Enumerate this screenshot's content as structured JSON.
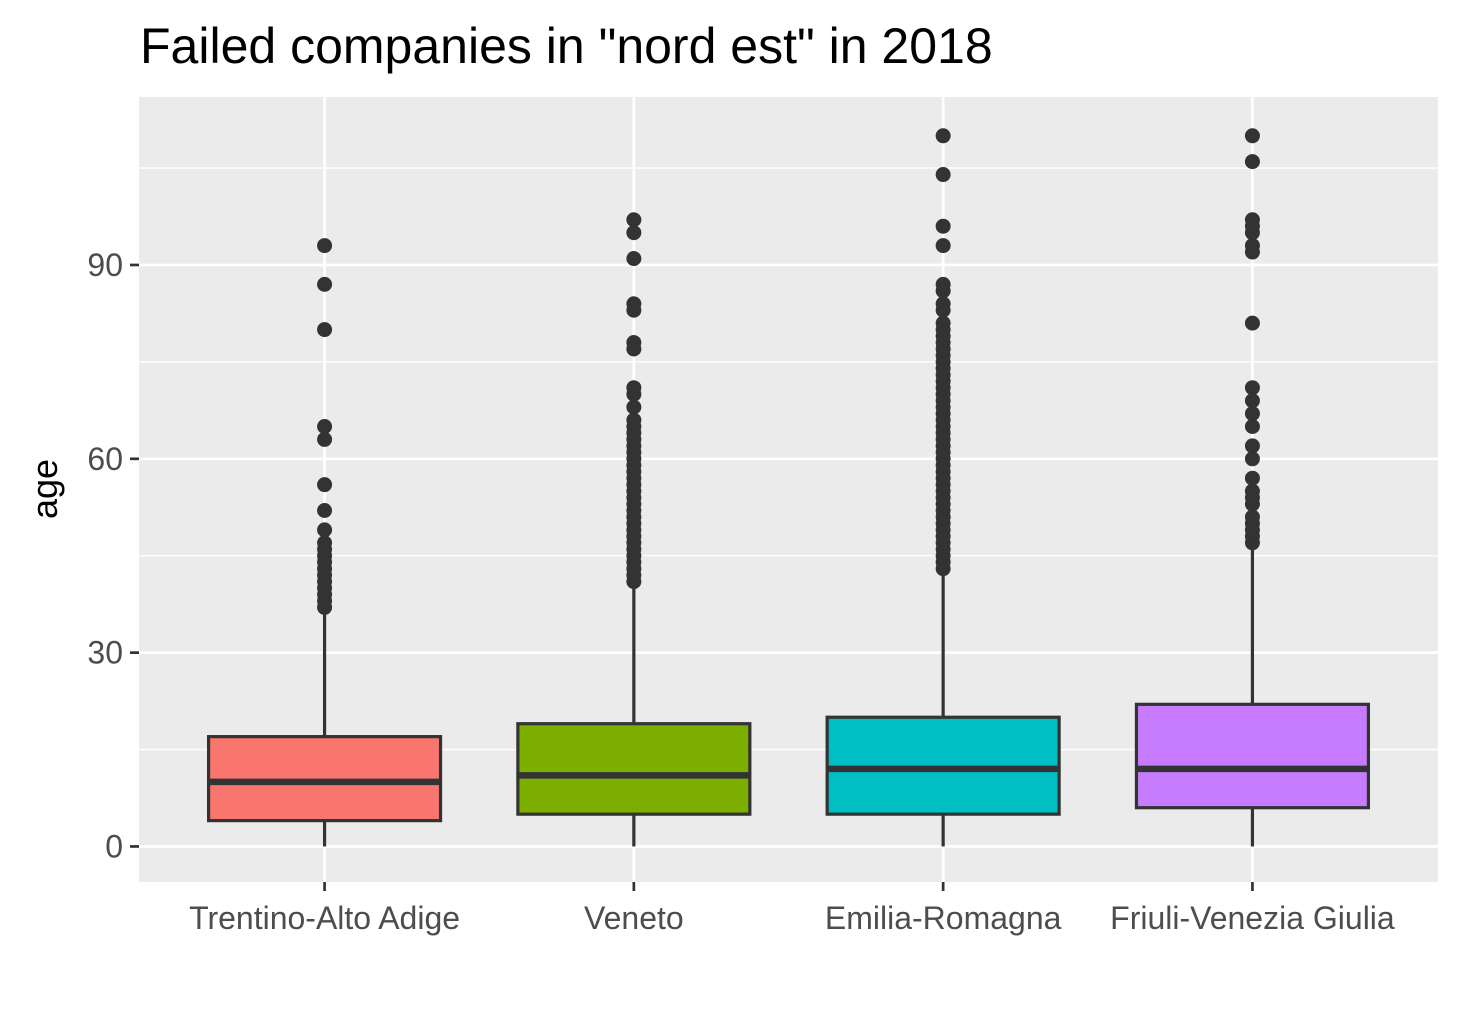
{
  "chart_data": {
    "type": "boxplot",
    "title": "Failed companies in \"nord est\" in 2018",
    "xlabel": "",
    "ylabel": "age",
    "ylim": [
      -5.5,
      116
    ],
    "yticks": [
      0,
      30,
      60,
      90
    ],
    "grid": true,
    "legend": "none",
    "categories": [
      "Trentino-Alto Adige",
      "Veneto",
      "Emilia-Romagna",
      "Friuli-Venezia Giulia"
    ],
    "colors": [
      "#F8766D",
      "#7CAE00",
      "#00BFC4",
      "#C77CFF"
    ],
    "boxes": [
      {
        "category": "Trentino-Alto Adige",
        "min": 0,
        "q1": 4,
        "median": 10,
        "q3": 17,
        "max": 37,
        "outliers": [
          37,
          38,
          39,
          40,
          41,
          42,
          43,
          44,
          45,
          46,
          47,
          49,
          52,
          56,
          63,
          65,
          80,
          87,
          93
        ]
      },
      {
        "category": "Veneto",
        "min": 0,
        "q1": 5,
        "median": 11,
        "q3": 19,
        "max": 41,
        "outliers": [
          41,
          42,
          43,
          44,
          45,
          46,
          47,
          48,
          49,
          50,
          51,
          52,
          53,
          54,
          55,
          56,
          57,
          58,
          59,
          60,
          61,
          62,
          63,
          64,
          65,
          66,
          68,
          70,
          71,
          77,
          78,
          83,
          84,
          91,
          95,
          97
        ]
      },
      {
        "category": "Emilia-Romagna",
        "min": 0,
        "q1": 5,
        "median": 12,
        "q3": 20,
        "max": 43,
        "outliers": [
          43,
          44,
          45,
          46,
          47,
          48,
          49,
          50,
          51,
          52,
          53,
          54,
          55,
          56,
          57,
          58,
          59,
          60,
          61,
          62,
          63,
          64,
          65,
          66,
          67,
          68,
          69,
          70,
          71,
          72,
          73,
          74,
          75,
          76,
          77,
          78,
          79,
          80,
          81,
          83,
          84,
          86,
          87,
          93,
          96,
          104,
          110
        ]
      },
      {
        "category": "Friuli-Venezia Giulia",
        "min": 0,
        "q1": 6,
        "median": 12,
        "q3": 22,
        "max": 47,
        "outliers": [
          47,
          48,
          49,
          50,
          51,
          53,
          54,
          55,
          57,
          60,
          62,
          65,
          67,
          69,
          71,
          81,
          92,
          93,
          95,
          96,
          97,
          106,
          110
        ]
      }
    ]
  }
}
